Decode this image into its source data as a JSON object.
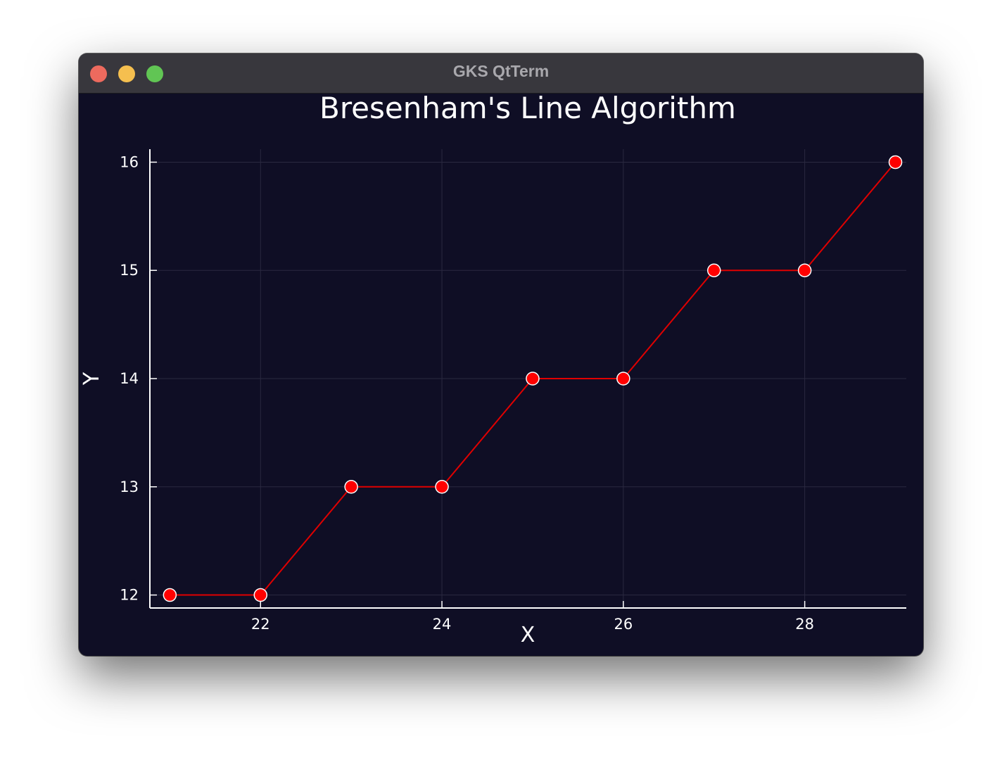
{
  "window": {
    "title": "GKS QtTerm"
  },
  "colors": {
    "background": "#0f0e25",
    "line": "#e00000",
    "marker_fill": "#ff0000",
    "marker_stroke": "#ffffff",
    "grid": "#2a2940",
    "axis": "#ffffff"
  },
  "chart_data": {
    "type": "line",
    "title": "Bresenham's Line Algorithm",
    "xlabel": "X",
    "ylabel": "Y",
    "x": [
      21,
      22,
      23,
      24,
      25,
      26,
      27,
      28,
      29
    ],
    "y": [
      12,
      12,
      13,
      13,
      14,
      14,
      15,
      15,
      16
    ],
    "xlim": [
      20.78,
      29.12
    ],
    "ylim": [
      11.88,
      16.12
    ],
    "xticks": [
      22,
      24,
      26,
      28
    ],
    "yticks": [
      12,
      13,
      14,
      15,
      16
    ],
    "markers": true,
    "grid": true,
    "legend": false
  }
}
